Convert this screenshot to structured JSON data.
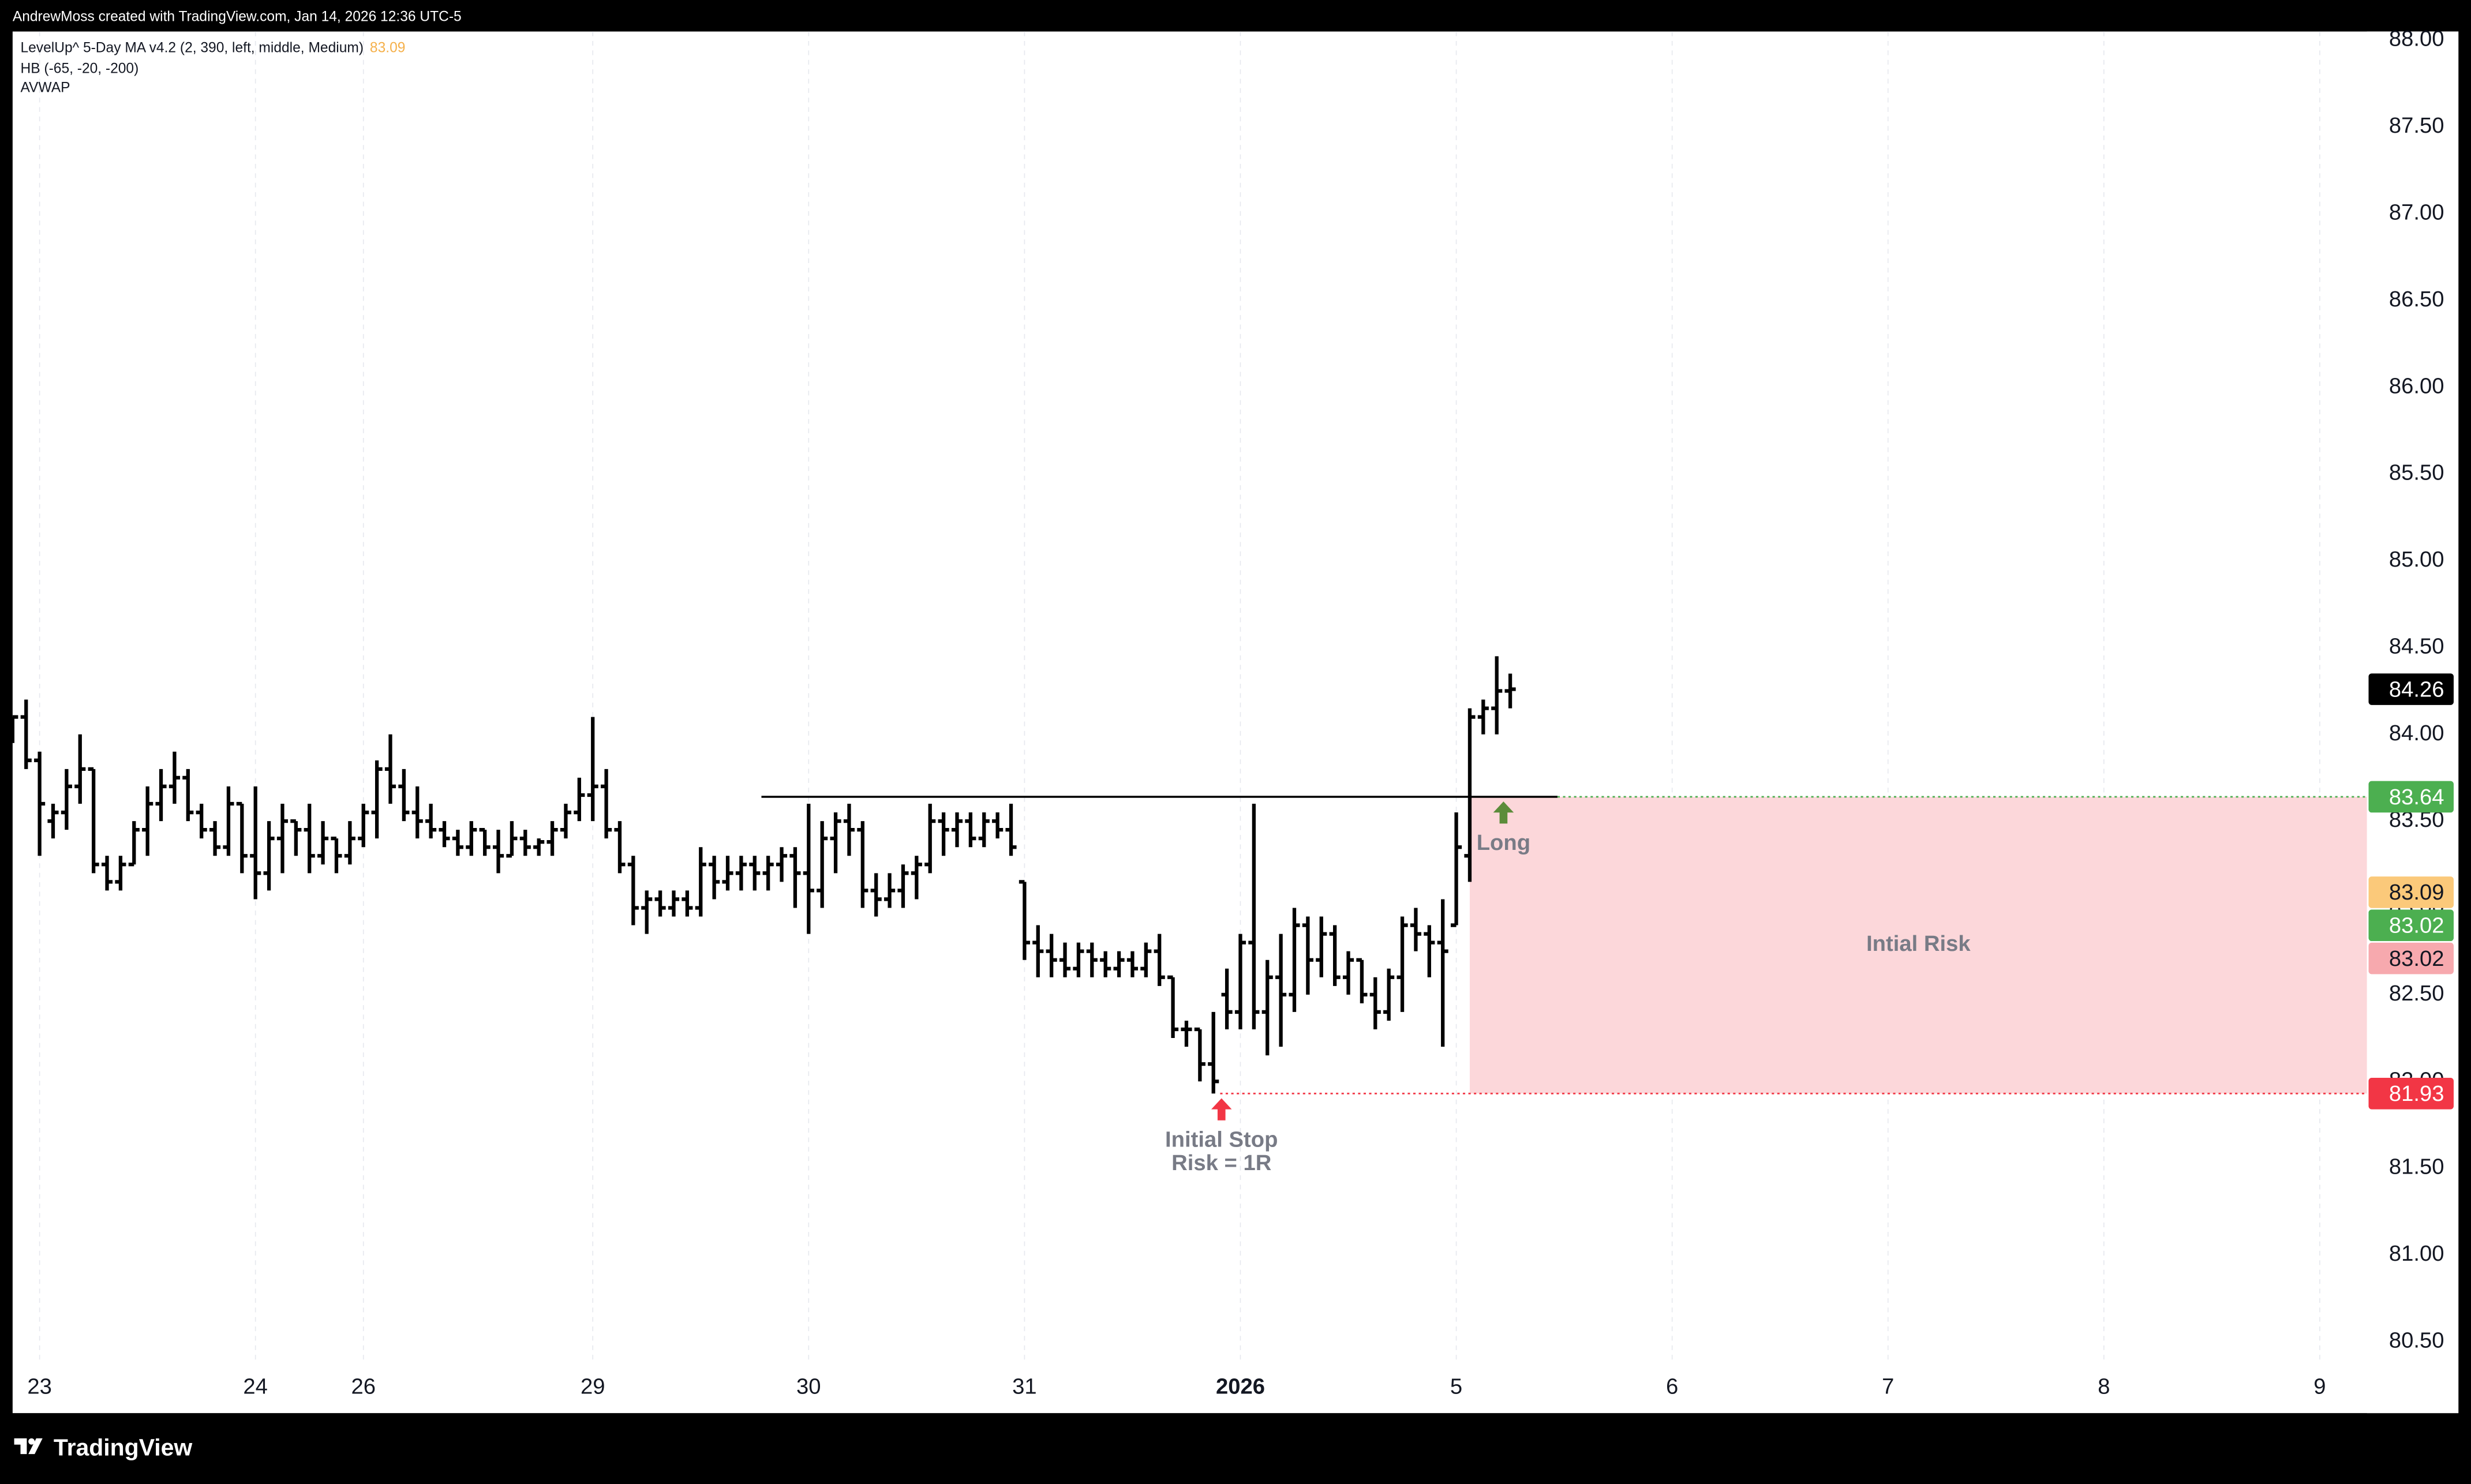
{
  "header": {
    "text": "AndrewMoss created with TradingView.com, Jan 14, 2026 12:36 UTC-5"
  },
  "legend": [
    {
      "text": "LevelUp^ 5-Day MA v4.2 (2, 390, left, middle, Medium)",
      "value": 83.09,
      "color": "#f5b04a"
    },
    {
      "text": "HB (-65, -20, -200)"
    },
    {
      "text": "AVWAP"
    }
  ],
  "footer": {
    "brand": "TradingView"
  },
  "chart_data": {
    "type": "ohlc",
    "color": "#000000",
    "grid": "x",
    "xlim": [
      0,
      174.5
    ],
    "ylim": [
      80.37,
      88.05
    ],
    "yticks": [
      {
        "value": 80.5,
        "label": "80.50"
      },
      {
        "value": 81,
        "label": "81.00"
      },
      {
        "value": 81.5,
        "label": "81.50"
      },
      {
        "value": 82,
        "label": "82.00"
      },
      {
        "value": 82.5,
        "label": "82.50"
      },
      {
        "value": 83,
        "label": "83.00"
      },
      {
        "value": 83.5,
        "label": "83.50"
      },
      {
        "value": 84,
        "label": "84.00"
      },
      {
        "value": 84.5,
        "label": "84.50"
      },
      {
        "value": 85,
        "label": "85.00"
      },
      {
        "value": 85.5,
        "label": "85.50"
      },
      {
        "value": 86,
        "label": "86.00"
      },
      {
        "value": 86.5,
        "label": "86.50"
      },
      {
        "value": 87,
        "label": "87.00"
      },
      {
        "value": 87.5,
        "label": "87.50"
      },
      {
        "value": 88,
        "label": "88.00"
      }
    ],
    "xticks": [
      {
        "value": 2,
        "label": "23"
      },
      {
        "value": 18,
        "label": "24"
      },
      {
        "value": 26,
        "label": "26"
      },
      {
        "value": 43,
        "label": "29"
      },
      {
        "value": 59,
        "label": "30"
      },
      {
        "value": 75,
        "label": "31"
      },
      {
        "value": 91,
        "label": "2026",
        "bold": true
      },
      {
        "value": 107,
        "label": "5"
      },
      {
        "value": 123,
        "label": "6"
      },
      {
        "value": 139,
        "label": "7"
      },
      {
        "value": 155,
        "label": "8"
      },
      {
        "value": 171,
        "label": "9"
      }
    ],
    "bars": [
      [
        84.05,
        84.1,
        83.95,
        84.1
      ],
      [
        84.1,
        84.2,
        83.8,
        83.85
      ],
      [
        83.85,
        83.9,
        83.3,
        83.6
      ],
      [
        83.5,
        83.6,
        83.4,
        83.55
      ],
      [
        83.55,
        83.8,
        83.45,
        83.7
      ],
      [
        83.7,
        84.0,
        83.6,
        83.8
      ],
      [
        83.8,
        83.8,
        83.2,
        83.25
      ],
      [
        83.25,
        83.3,
        83.1,
        83.15
      ],
      [
        83.15,
        83.3,
        83.1,
        83.25
      ],
      [
        83.25,
        83.5,
        83.25,
        83.45
      ],
      [
        83.45,
        83.7,
        83.3,
        83.6
      ],
      [
        83.6,
        83.8,
        83.5,
        83.7
      ],
      [
        83.7,
        83.9,
        83.6,
        83.75
      ],
      [
        83.75,
        83.8,
        83.5,
        83.55
      ],
      [
        83.55,
        83.6,
        83.4,
        83.45
      ],
      [
        83.45,
        83.5,
        83.3,
        83.35
      ],
      [
        83.35,
        83.7,
        83.3,
        83.6
      ],
      [
        83.6,
        83.6,
        83.2,
        83.3
      ],
      [
        83.3,
        83.7,
        83.05,
        83.2
      ],
      [
        83.2,
        83.5,
        83.1,
        83.4
      ],
      [
        83.4,
        83.6,
        83.2,
        83.5
      ],
      [
        83.5,
        83.5,
        83.3,
        83.45
      ],
      [
        83.45,
        83.6,
        83.2,
        83.3
      ],
      [
        83.3,
        83.5,
        83.25,
        83.4
      ],
      [
        83.4,
        83.4,
        83.2,
        83.3
      ],
      [
        83.3,
        83.5,
        83.25,
        83.4
      ],
      [
        83.4,
        83.6,
        83.35,
        83.55
      ],
      [
        83.55,
        83.85,
        83.4,
        83.8
      ],
      [
        83.8,
        84.0,
        83.6,
        83.7
      ],
      [
        83.7,
        83.8,
        83.5,
        83.55
      ],
      [
        83.55,
        83.7,
        83.4,
        83.5
      ],
      [
        83.5,
        83.6,
        83.4,
        83.45
      ],
      [
        83.45,
        83.5,
        83.35,
        83.4
      ],
      [
        83.4,
        83.45,
        83.3,
        83.35
      ],
      [
        83.35,
        83.5,
        83.3,
        83.45
      ],
      [
        83.45,
        83.45,
        83.3,
        83.35
      ],
      [
        83.35,
        83.45,
        83.2,
        83.3
      ],
      [
        83.3,
        83.5,
        83.3,
        83.4
      ],
      [
        83.4,
        83.45,
        83.3,
        83.35
      ],
      [
        83.35,
        83.4,
        83.3,
        83.38
      ],
      [
        83.38,
        83.5,
        83.3,
        83.45
      ],
      [
        83.45,
        83.6,
        83.4,
        83.55
      ],
      [
        83.55,
        83.75,
        83.5,
        83.65
      ],
      [
        83.65,
        84.1,
        83.5,
        83.7
      ],
      [
        83.7,
        83.8,
        83.4,
        83.45
      ],
      [
        83.45,
        83.5,
        83.2,
        83.25
      ],
      [
        83.25,
        83.3,
        82.9,
        83.0
      ],
      [
        83.0,
        83.1,
        82.85,
        83.05
      ],
      [
        83.05,
        83.1,
        82.95,
        83.0
      ],
      [
        83.0,
        83.1,
        82.95,
        83.05
      ],
      [
        83.05,
        83.1,
        82.95,
        83.0
      ],
      [
        83.0,
        83.35,
        82.95,
        83.25
      ],
      [
        83.25,
        83.3,
        83.05,
        83.15
      ],
      [
        83.15,
        83.3,
        83.1,
        83.2
      ],
      [
        83.2,
        83.3,
        83.1,
        83.25
      ],
      [
        83.25,
        83.3,
        83.1,
        83.2
      ],
      [
        83.2,
        83.3,
        83.1,
        83.25
      ],
      [
        83.25,
        83.35,
        83.15,
        83.3
      ],
      [
        83.3,
        83.35,
        83.0,
        83.2
      ],
      [
        83.2,
        83.6,
        82.85,
        83.1
      ],
      [
        83.1,
        83.5,
        83.0,
        83.4
      ],
      [
        83.4,
        83.55,
        83.2,
        83.5
      ],
      [
        83.5,
        83.6,
        83.3,
        83.45
      ],
      [
        83.45,
        83.5,
        83.0,
        83.1
      ],
      [
        83.1,
        83.2,
        82.95,
        83.05
      ],
      [
        83.05,
        83.2,
        83.0,
        83.1
      ],
      [
        83.1,
        83.25,
        83.0,
        83.2
      ],
      [
        83.2,
        83.3,
        83.05,
        83.25
      ],
      [
        83.25,
        83.6,
        83.2,
        83.5
      ],
      [
        83.5,
        83.55,
        83.3,
        83.45
      ],
      [
        83.45,
        83.55,
        83.35,
        83.5
      ],
      [
        83.5,
        83.55,
        83.35,
        83.4
      ],
      [
        83.4,
        83.55,
        83.35,
        83.5
      ],
      [
        83.5,
        83.55,
        83.4,
        83.45
      ],
      [
        83.45,
        83.6,
        83.3,
        83.35
      ],
      [
        83.15,
        83.15,
        82.7,
        82.8
      ],
      [
        82.8,
        82.9,
        82.6,
        82.75
      ],
      [
        82.75,
        82.85,
        82.6,
        82.7
      ],
      [
        82.7,
        82.8,
        82.6,
        82.65
      ],
      [
        82.65,
        82.8,
        82.6,
        82.75
      ],
      [
        82.75,
        82.8,
        82.6,
        82.7
      ],
      [
        82.7,
        82.75,
        82.6,
        82.65
      ],
      [
        82.65,
        82.75,
        82.6,
        82.7
      ],
      [
        82.7,
        82.75,
        82.6,
        82.65
      ],
      [
        82.65,
        82.8,
        82.6,
        82.75
      ],
      [
        82.75,
        82.85,
        82.55,
        82.6
      ],
      [
        82.6,
        82.6,
        82.25,
        82.3
      ],
      [
        82.3,
        82.35,
        82.2,
        82.3
      ],
      [
        82.3,
        82.3,
        82.0,
        82.1
      ],
      [
        82.1,
        82.4,
        81.93,
        82.0
      ],
      [
        82.5,
        82.65,
        82.3,
        82.4
      ],
      [
        82.4,
        82.85,
        82.3,
        82.8
      ],
      [
        82.8,
        83.6,
        82.3,
        82.4
      ],
      [
        82.4,
        82.7,
        82.15,
        82.6
      ],
      [
        82.6,
        82.85,
        82.2,
        82.5
      ],
      [
        82.5,
        83.0,
        82.4,
        82.9
      ],
      [
        82.9,
        82.95,
        82.5,
        82.7
      ],
      [
        82.7,
        82.95,
        82.6,
        82.85
      ],
      [
        82.85,
        82.9,
        82.55,
        82.6
      ],
      [
        82.6,
        82.75,
        82.5,
        82.7
      ],
      [
        82.7,
        82.7,
        82.45,
        82.5
      ],
      [
        82.5,
        82.6,
        82.3,
        82.4
      ],
      [
        82.4,
        82.65,
        82.35,
        82.6
      ],
      [
        82.6,
        82.95,
        82.4,
        82.9
      ],
      [
        82.9,
        83.0,
        82.75,
        82.85
      ],
      [
        82.85,
        82.9,
        82.6,
        82.8
      ],
      [
        82.8,
        83.05,
        82.2,
        82.75
      ],
      [
        82.9,
        83.55,
        82.9,
        83.35
      ],
      [
        83.3,
        84.15,
        83.15,
        84.1
      ],
      [
        84.1,
        84.2,
        84.0,
        84.15
      ],
      [
        84.15,
        84.45,
        84.0,
        84.25
      ],
      [
        84.25,
        84.35,
        84.15,
        84.26
      ]
    ],
    "entry_line": {
      "value": 83.64,
      "from": 55.5,
      "to": 114.5,
      "color": "#000000",
      "extend_color": "#4caf50"
    },
    "stop_line": {
      "value": 81.93,
      "from": 89.5,
      "color": "#f23645"
    },
    "risk_box": {
      "top": 83.64,
      "bottom": 81.93,
      "from": 108,
      "color": "#fcd7da",
      "label": "Intial Risk"
    },
    "annotations": [
      {
        "text": "Long",
        "x": 110.5,
        "y": 83.64,
        "arrow_color": "#5b8c3a"
      },
      {
        "text": "Initial Stop",
        "text2": "Risk = 1R",
        "x": 89.6,
        "y": 81.93,
        "arrow_color": "#f23645"
      }
    ],
    "price_tags": [
      {
        "value": 84.26,
        "color": "#000000",
        "text_color": "#ffffff"
      },
      {
        "value": 83.64,
        "color": "#4caf50",
        "text_color": "#ffffff"
      },
      {
        "value": 83.09,
        "color": "#fbc97a",
        "text_color": "#131722"
      },
      {
        "value": 83.02,
        "color": "#4caf50",
        "text_color": "#ffffff"
      },
      {
        "value": 83.02,
        "color": "#f7a9ae",
        "text_color": "#131722"
      },
      {
        "value": 81.93,
        "color": "#f23645",
        "text_color": "#ffffff"
      }
    ]
  }
}
